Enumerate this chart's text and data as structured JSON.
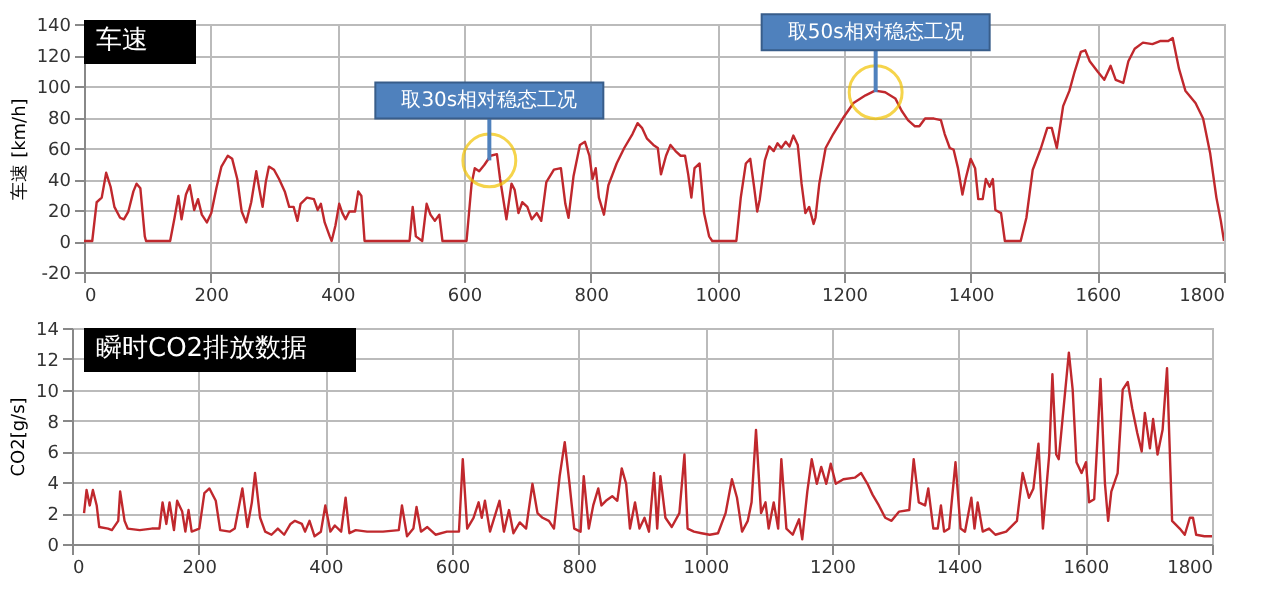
{
  "chart_data": [
    {
      "type": "line",
      "title": "车速",
      "ylabel": "车速 [km/h]",
      "xlim": [
        0,
        1800
      ],
      "xticks": [
        0,
        200,
        400,
        600,
        800,
        1000,
        1200,
        1400,
        1600,
        1800
      ],
      "ylim": [
        -20,
        140
      ],
      "yticks": [
        -20,
        0,
        20,
        40,
        60,
        80,
        100,
        120,
        140
      ],
      "grid": true,
      "annotations": [
        {
          "text": "取30s相对稳态工况",
          "x": 640,
          "y": 52
        },
        {
          "text": "取50s相对稳态工况",
          "x": 1250,
          "y": 96
        }
      ],
      "series": [
        {
          "color": "#c0282d",
          "x": [
            0,
            13,
            20,
            28,
            35,
            42,
            48,
            57,
            63,
            70,
            78,
            83,
            89,
            96,
            98,
            136,
            143,
            149,
            154,
            161,
            167,
            174,
            180,
            186,
            194,
            201,
            209,
            217,
            227,
            234,
            242,
            249,
            256,
            264,
            272,
            277,
            282,
            287,
            292,
            300,
            308,
            317,
            324,
            331,
            337,
            342,
            352,
            363,
            369,
            374,
            380,
            388,
            391,
            397,
            403,
            408,
            413,
            419,
            428,
            433,
            438,
            443,
            514,
            519,
            524,
            534,
            541,
            547,
            554,
            561,
            566,
            604,
            612,
            617,
            624,
            632,
            642,
            652,
            657,
            667,
            675,
            680,
            686,
            692,
            700,
            707,
            715,
            722,
            730,
            742,
            753,
            760,
            765,
            773,
            783,
            791,
            798,
            803,
            808,
            813,
            821,
            828,
            841,
            853,
            866,
            874,
            881,
            889,
            899,
            906,
            911,
            919,
            926,
            934,
            942,
            949,
            954,
            959,
            964,
            972,
            979,
            987,
            992,
            1030,
            1037,
            1045,
            1052,
            1058,
            1063,
            1067,
            1075,
            1082,
            1089,
            1095,
            1101,
            1108,
            1114,
            1120,
            1127,
            1133,
            1139,
            1145,
            1152,
            1155,
            1161,
            1171,
            1183,
            1198,
            1215,
            1234,
            1249,
            1265,
            1281,
            1291,
            1301,
            1312,
            1319,
            1328,
            1342,
            1353,
            1359,
            1367,
            1373,
            1380,
            1387,
            1392,
            1400,
            1407,
            1412,
            1419,
            1424,
            1430,
            1435,
            1439,
            1448,
            1454,
            1479,
            1488,
            1498,
            1511,
            1521,
            1528,
            1536,
            1546,
            1556,
            1564,
            1574,
            1581,
            1588,
            1601,
            1611,
            1621,
            1629,
            1641,
            1649,
            1659,
            1672,
            1687,
            1699,
            1712,
            1719,
            1729,
            1739,
            1755,
            1767,
            1778,
            1788,
            1795,
            1800
          ],
          "values": [
            0,
            0,
            25,
            28,
            44,
            35,
            22,
            15,
            14,
            19,
            32,
            37,
            34,
            3,
            0,
            0,
            15,
            29,
            14,
            30,
            36,
            20,
            27,
            17,
            12,
            18,
            34,
            48,
            55,
            53,
            40,
            19,
            12,
            25,
            45,
            33,
            22,
            38,
            48,
            46,
            40,
            32,
            22,
            22,
            13,
            24,
            28,
            27,
            20,
            24,
            12,
            3,
            0,
            10,
            24,
            18,
            14,
            19,
            19,
            32,
            29,
            0,
            0,
            22,
            3,
            0,
            24,
            17,
            13,
            17,
            0,
            0,
            37,
            47,
            45,
            49,
            55,
            56,
            40,
            14,
            37,
            33,
            18,
            25,
            22,
            14,
            18,
            13,
            38,
            46,
            47,
            24,
            15,
            42,
            62,
            64,
            55,
            40,
            47,
            28,
            17,
            36,
            50,
            60,
            69,
            76,
            73,
            66,
            62,
            60,
            43,
            55,
            62,
            58,
            55,
            55,
            43,
            28,
            47,
            50,
            18,
            3,
            0,
            0,
            28,
            50,
            53,
            35,
            19,
            27,
            52,
            61,
            58,
            63,
            60,
            64,
            61,
            68,
            62,
            37,
            18,
            22,
            11,
            15,
            37,
            60,
            69,
            79,
            89,
            94,
            97,
            96,
            92,
            84,
            78,
            74,
            74,
            79,
            79,
            78,
            69,
            60,
            59,
            47,
            30,
            40,
            53,
            47,
            27,
            27,
            40,
            35,
            40,
            20,
            18,
            0,
            0,
            15,
            46,
            60,
            73,
            73,
            60,
            87,
            97,
            109,
            122,
            123,
            116,
            109,
            104,
            113,
            104,
            102,
            116,
            124,
            128,
            127,
            129,
            129,
            131,
            111,
            97,
            89,
            79,
            57,
            28,
            13,
            0
          ]
        }
      ]
    },
    {
      "type": "line",
      "title": "瞬时CO2排放数据",
      "ylabel": "CO2[g/s]",
      "xlim": [
        0,
        1800
      ],
      "xticks": [
        0,
        200,
        400,
        600,
        800,
        1000,
        1200,
        1400,
        1600,
        1800
      ],
      "ylim": [
        0,
        14
      ],
      "yticks": [
        0,
        2,
        4,
        6,
        8,
        10,
        12,
        14
      ],
      "grid": true,
      "series": [
        {
          "color": "#c0282d",
          "x": [
            19,
            23,
            28,
            33,
            39,
            43,
            57,
            63,
            73,
            76,
            83,
            88,
            107,
            126,
            138,
            143,
            149,
            154,
            161,
            166,
            174,
            179,
            184,
            189,
            201,
            209,
            217,
            227,
            234,
            249,
            257,
            269,
            277,
            284,
            289,
            297,
            305,
            315,
            325,
            335,
            345,
            352,
            363,
            368,
            375,
            383,
            393,
            400,
            408,
            415,
            425,
            432,
            438,
            448,
            466,
            491,
            516,
            521,
            529,
            539,
            544,
            551,
            561,
            574,
            592,
            611,
            617,
            624,
            634,
            642,
            647,
            652,
            660,
            675,
            682,
            690,
            697,
            707,
            717,
            727,
            735,
            743,
            753,
            761,
            770,
            778,
            785,
            793,
            803,
            808,
            816,
            823,
            831,
            836,
            843,
            853,
            861,
            868,
            875,
            881,
            889,
            896,
            904,
            911,
            919,
            924,
            929,
            937,
            947,
            959,
            967,
            972,
            982,
            994,
            1007,
            1020,
            1032,
            1042,
            1050,
            1058,
            1067,
            1073,
            1080,
            1088,
            1095,
            1100,
            1108,
            1115,
            1120,
            1128,
            1138,
            1148,
            1153,
            1161,
            1168,
            1176,
            1183,
            1191,
            1198,
            1206,
            1218,
            1236,
            1246,
            1256,
            1264,
            1274,
            1284,
            1294,
            1306,
            1322,
            1329,
            1337,
            1347,
            1352,
            1360,
            1367,
            1372,
            1377,
            1385,
            1395,
            1403,
            1410,
            1420,
            1425,
            1430,
            1438,
            1448,
            1458,
            1475,
            1492,
            1501,
            1511,
            1518,
            1526,
            1533,
            1543,
            1548,
            1554,
            1558,
            1564,
            1574,
            1580,
            1586,
            1594,
            1601,
            1606,
            1614,
            1619,
            1624,
            1631,
            1636,
            1641,
            1651,
            1659,
            1667,
            1674,
            1682,
            1689,
            1694,
            1702,
            1707,
            1714,
            1722,
            1729,
            1737,
            1749,
            1757,
            1765,
            1770,
            1775,
            1788,
            1800
          ],
          "values": [
            2.0,
            3.5,
            2.5,
            3.5,
            2.5,
            1.1,
            1.0,
            0.9,
            1.5,
            3.4,
            1.5,
            1.0,
            0.9,
            1.0,
            1.0,
            2.7,
            1.3,
            2.7,
            0.9,
            2.8,
            2.1,
            0.8,
            2.2,
            0.8,
            1.0,
            3.3,
            3.6,
            2.8,
            0.9,
            0.8,
            1.0,
            3.6,
            1.1,
            2.7,
            4.6,
            1.7,
            0.8,
            0.6,
            1.0,
            0.6,
            1.3,
            1.5,
            1.3,
            0.8,
            1.5,
            0.5,
            0.8,
            2.5,
            0.8,
            1.2,
            0.8,
            3.0,
            0.7,
            0.9,
            0.8,
            0.8,
            0.9,
            2.5,
            0.5,
            1.0,
            2.4,
            0.8,
            1.1,
            0.6,
            0.8,
            0.8,
            5.5,
            1.0,
            1.7,
            2.7,
            1.7,
            2.8,
            0.8,
            2.8,
            0.8,
            2.2,
            0.7,
            1.4,
            1.0,
            3.9,
            2.0,
            1.7,
            1.5,
            1.0,
            4.4,
            6.6,
            4.1,
            1.0,
            0.8,
            4.4,
            1.0,
            2.5,
            3.6,
            2.5,
            2.8,
            3.1,
            2.8,
            4.9,
            3.9,
            1.0,
            2.7,
            1.0,
            1.7,
            0.8,
            4.6,
            1.0,
            4.4,
            1.7,
            1.1,
            2.0,
            5.8,
            1.0,
            0.8,
            0.7,
            0.6,
            0.7,
            2.0,
            4.2,
            3.0,
            0.8,
            1.5,
            2.7,
            7.4,
            2.0,
            2.7,
            1.0,
            2.7,
            1.0,
            5.5,
            1.0,
            0.6,
            1.6,
            0.3,
            3.4,
            5.5,
            3.9,
            5.0,
            3.9,
            5.2,
            3.9,
            4.2,
            4.3,
            4.6,
            3.9,
            3.2,
            2.5,
            1.7,
            1.5,
            2.1,
            2.2,
            5.5,
            2.7,
            2.5,
            3.6,
            1.0,
            1.0,
            2.5,
            0.8,
            1.0,
            5.3,
            1.0,
            0.8,
            3.0,
            1.0,
            2.7,
            0.8,
            1.0,
            0.6,
            0.8,
            1.5,
            4.6,
            3.0,
            3.6,
            6.5,
            1.0,
            5.8,
            11.0,
            5.8,
            5.5,
            8.1,
            12.4,
            10.0,
            5.3,
            4.6,
            5.3,
            2.7,
            2.9,
            6.7,
            10.7,
            3.9,
            1.5,
            3.4,
            4.6,
            10.0,
            10.5,
            8.8,
            7.2,
            6.0,
            8.5,
            6.2,
            8.1,
            5.8,
            7.4,
            11.4,
            1.5,
            1.0,
            0.6,
            1.7,
            1.7,
            0.6,
            0.5,
            0.5
          ]
        }
      ]
    }
  ]
}
